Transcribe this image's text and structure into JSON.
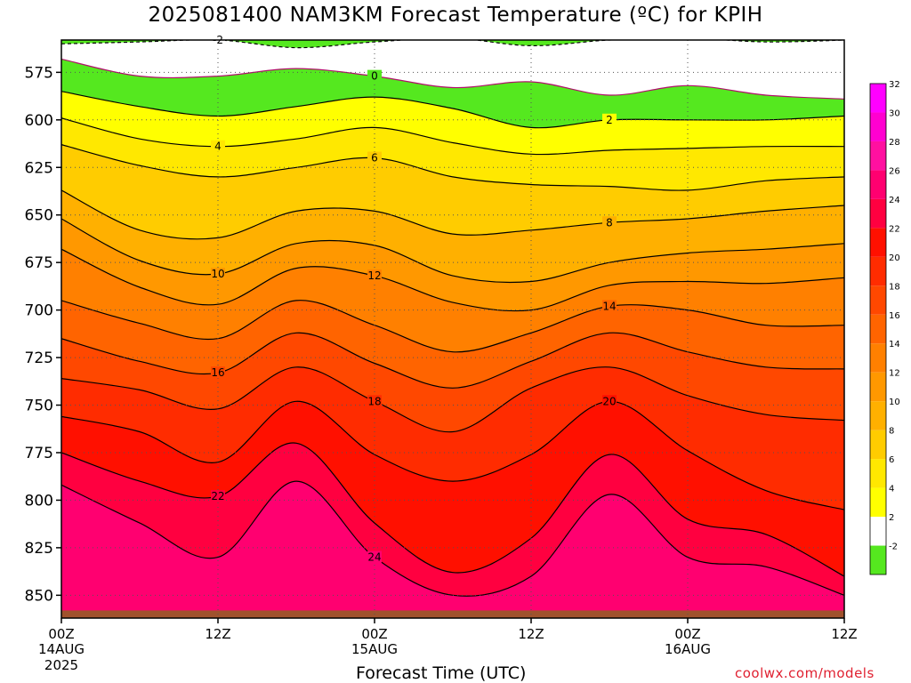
{
  "chart_data": {
    "type": "heatmap",
    "title": "2025081400 NAM3KM Forecast Temperature (ºC) for KPIH",
    "xlabel": "Forecast Time (UTC)",
    "credit": "coolwx.com/models",
    "x_ticks": [
      {
        "label": "00Z",
        "sub": "14AUG",
        "sub2": "2025",
        "hour": 0
      },
      {
        "label": "12Z",
        "sub": "",
        "sub2": "",
        "hour": 12
      },
      {
        "label": "00Z",
        "sub": "15AUG",
        "sub2": "",
        "hour": 24
      },
      {
        "label": "12Z",
        "sub": "",
        "sub2": "",
        "hour": 36
      },
      {
        "label": "00Z",
        "sub": "16AUG",
        "sub2": "",
        "hour": 48
      },
      {
        "label": "12Z",
        "sub": "",
        "sub2": "",
        "hour": 60
      }
    ],
    "xlim": [
      0,
      60
    ],
    "y_ticks": [
      575,
      600,
      625,
      650,
      675,
      700,
      725,
      750,
      775,
      800,
      825,
      850
    ],
    "ylim": [
      558,
      862
    ],
    "colorbar": {
      "levels": [
        -2,
        2,
        4,
        6,
        8,
        10,
        12,
        14,
        16,
        18,
        20,
        22,
        24,
        26,
        28,
        30,
        32
      ],
      "colors": [
        "#55e81f",
        "#ffffff",
        "#ffff00",
        "#ffe800",
        "#ffcc00",
        "#ffb000",
        "#ff9800",
        "#ff8000",
        "#ff6400",
        "#ff4800",
        "#ff2c00",
        "#ff1000",
        "#ff0040",
        "#ff0070",
        "#ff10a0",
        "#ff00d0",
        "#ff00ff"
      ]
    },
    "contours": [
      {
        "level": -2,
        "pressure": [
          560,
          559,
          558,
          562,
          559,
          557,
          561,
          558,
          557,
          559,
          558
        ]
      },
      {
        "level": 0,
        "pressure": [
          568,
          577,
          577,
          573,
          577,
          583,
          580,
          587,
          582,
          587,
          589
        ]
      },
      {
        "level": 2,
        "pressure": [
          585,
          593,
          598,
          593,
          588,
          594,
          604,
          600,
          600,
          600,
          598
        ]
      },
      {
        "level": 4,
        "pressure": [
          599,
          610,
          614,
          610,
          604,
          612,
          618,
          616,
          615,
          614,
          614
        ]
      },
      {
        "level": 6,
        "pressure": [
          613,
          624,
          630,
          625,
          620,
          630,
          634,
          635,
          637,
          632,
          630
        ]
      },
      {
        "level": 8,
        "pressure": [
          637,
          658,
          662,
          648,
          648,
          660,
          658,
          654,
          652,
          648,
          645
        ]
      },
      {
        "level": 10,
        "pressure": [
          652,
          674,
          681,
          665,
          666,
          682,
          685,
          675,
          670,
          668,
          665
        ]
      },
      {
        "level": 12,
        "pressure": [
          668,
          688,
          697,
          678,
          682,
          696,
          700,
          687,
          685,
          686,
          683
        ]
      },
      {
        "level": 14,
        "pressure": [
          695,
          707,
          715,
          695,
          708,
          722,
          712,
          698,
          700,
          708,
          708
        ]
      },
      {
        "level": 16,
        "pressure": [
          715,
          727,
          733,
          712,
          728,
          741,
          727,
          712,
          722,
          730,
          731
        ]
      },
      {
        "level": 18,
        "pressure": [
          736,
          742,
          752,
          730,
          748,
          764,
          741,
          730,
          745,
          755,
          758
        ]
      },
      {
        "level": 20,
        "pressure": [
          756,
          764,
          780,
          748,
          776,
          790,
          776,
          748,
          774,
          795,
          805
        ]
      },
      {
        "level": 22,
        "pressure": [
          775,
          790,
          798,
          770,
          812,
          838,
          820,
          776,
          810,
          818,
          840
        ]
      },
      {
        "level": 24,
        "pressure": [
          792,
          812,
          830,
          790,
          830,
          850,
          840,
          797,
          830,
          835,
          850
        ]
      }
    ],
    "ground_pressure": 858
  }
}
